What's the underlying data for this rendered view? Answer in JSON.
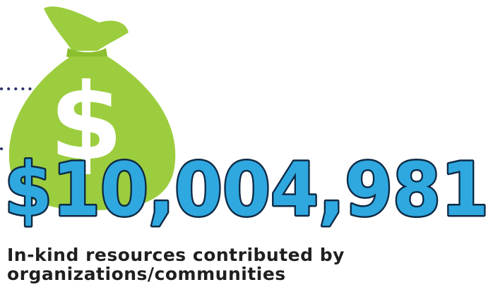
{
  "amount": "$10,004,981",
  "caption": {
    "line1": "In-kind resources contributed by",
    "line2": "organizations/communities"
  },
  "colors": {
    "bag_green": "#9ccd3e",
    "bag_tie": "#8cbf2e",
    "amount_fill": "#2fa8e0",
    "amount_outline": "#0d2a45",
    "dots": "#2b2f66",
    "caption_text": "#1f1f1f"
  },
  "icons": {
    "bag": "money-bag-icon",
    "dollar": "dollar-sign-icon"
  }
}
